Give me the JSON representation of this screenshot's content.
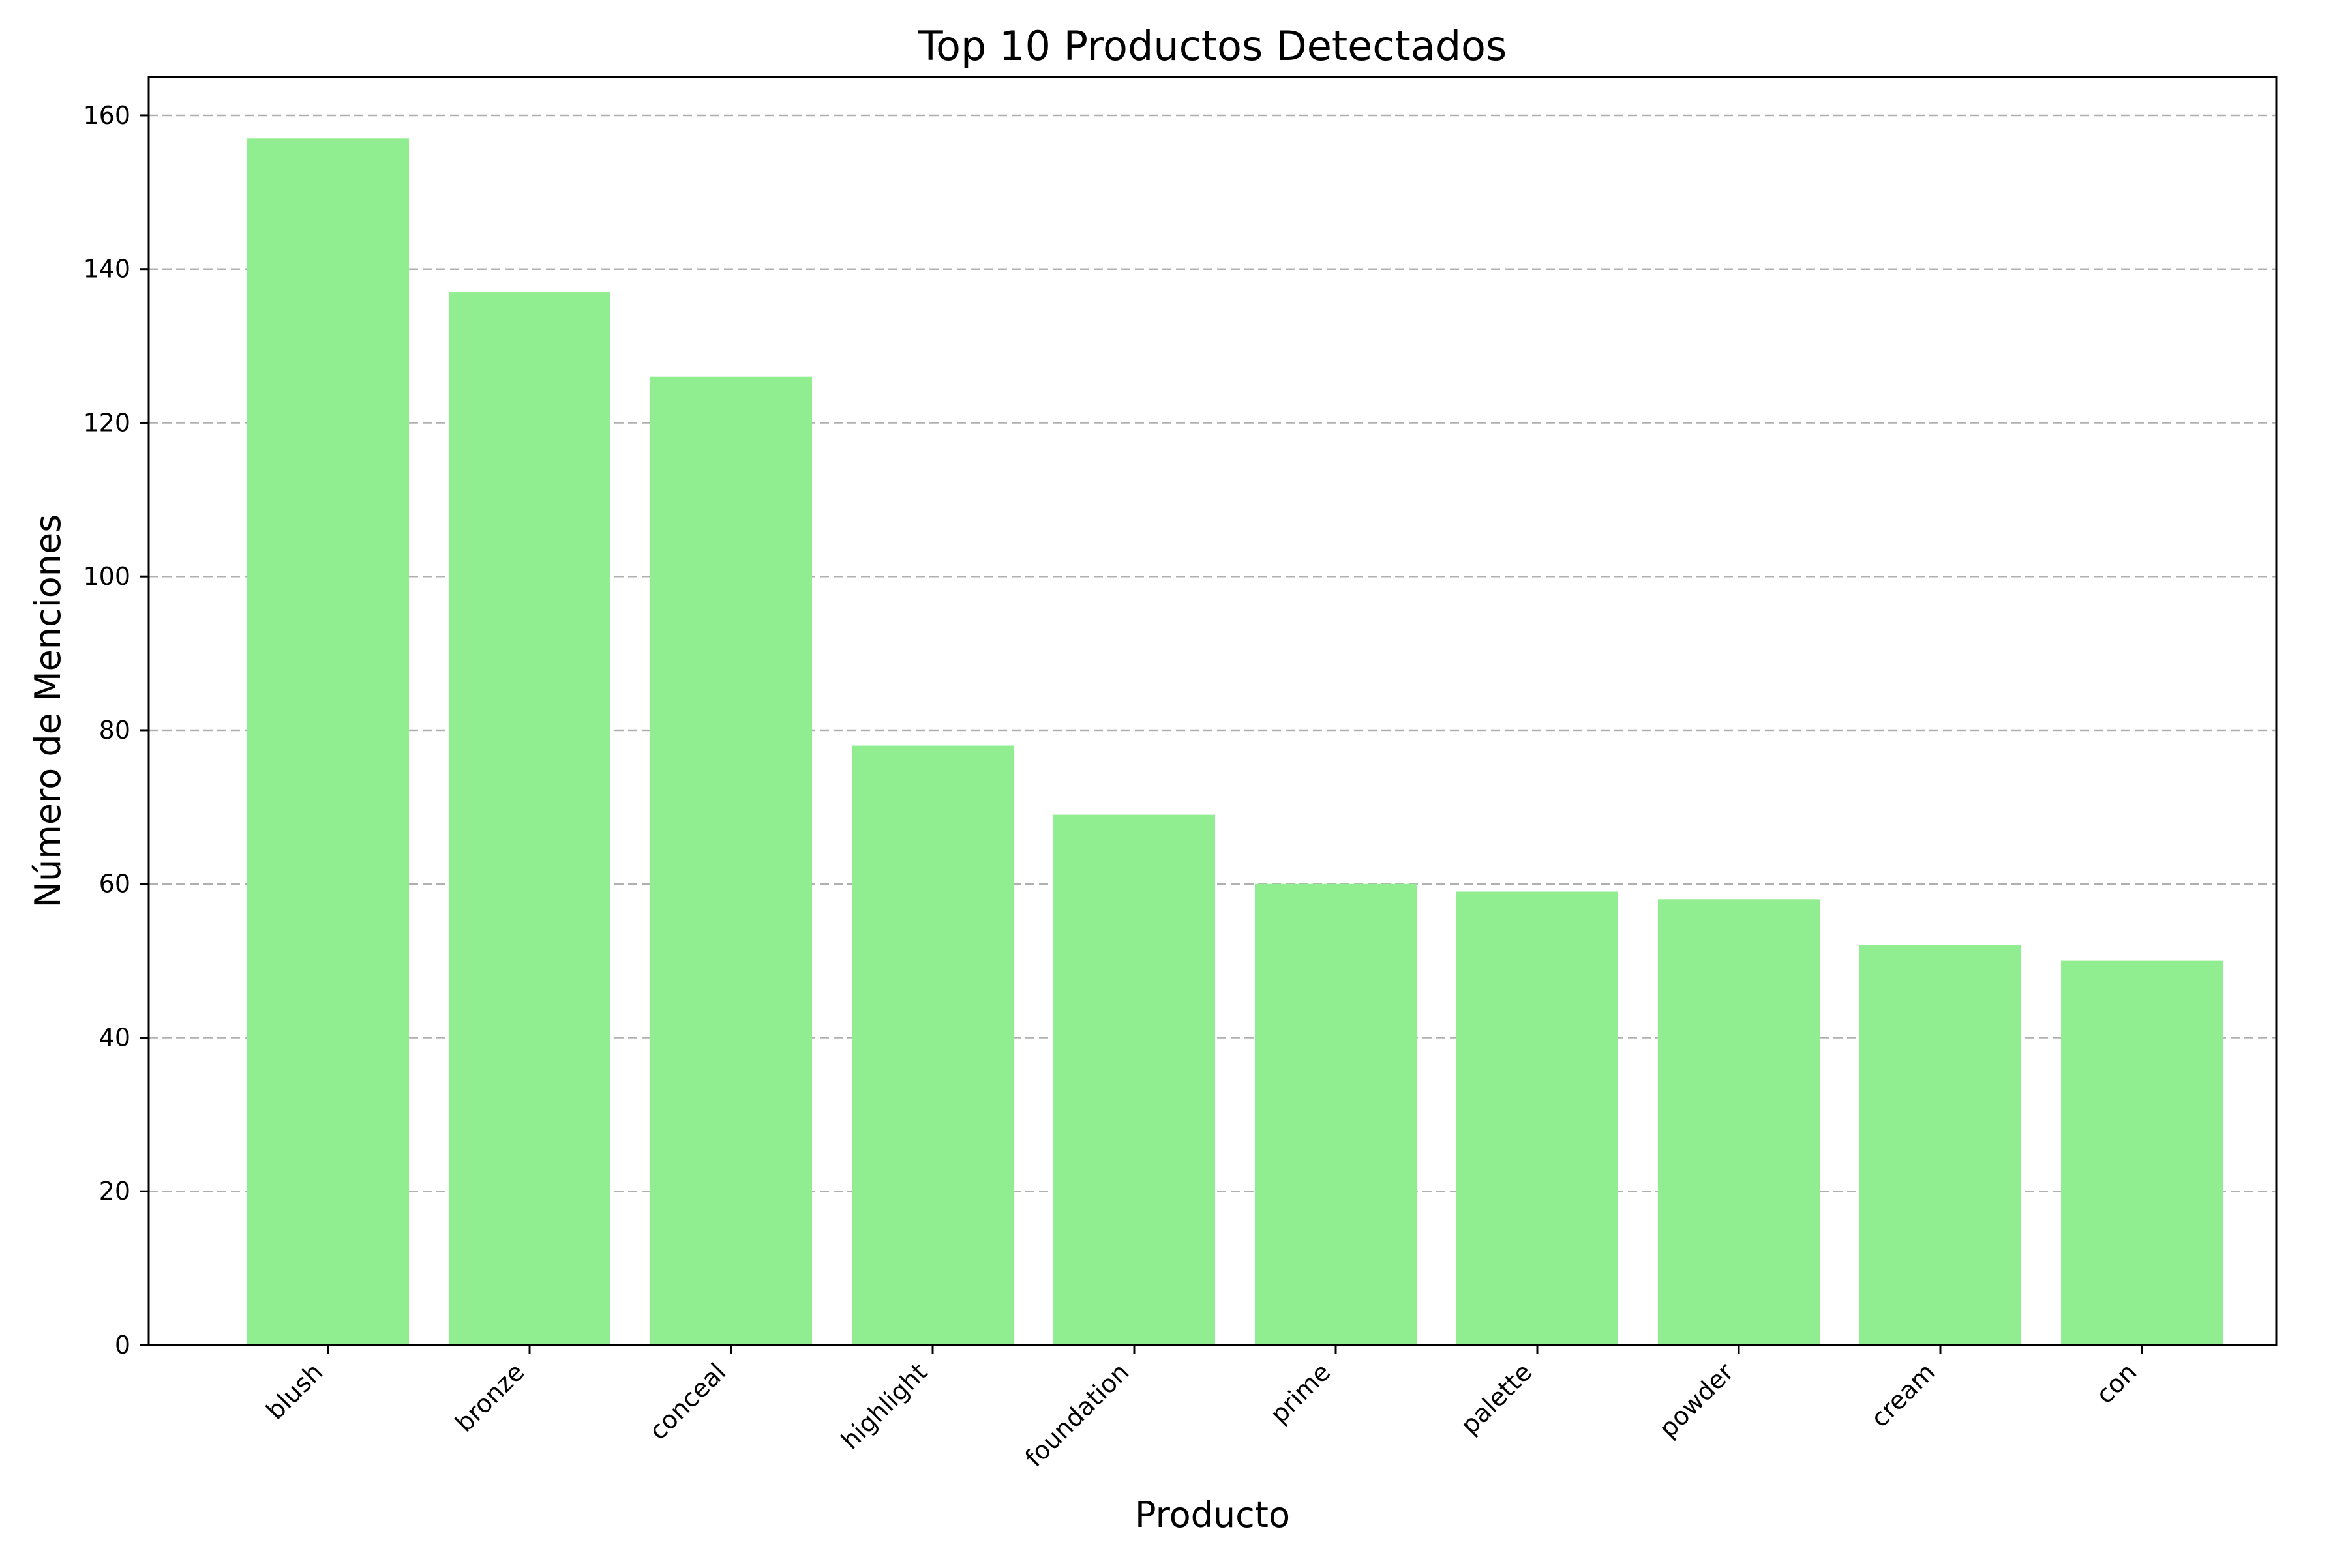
{
  "chart_data": {
    "type": "bar",
    "title": "Top 10 Productos Detectados",
    "xlabel": "Producto",
    "ylabel": "Número de Menciones",
    "categories": [
      "blush",
      "bronze",
      "conceal",
      "highlight",
      "foundation",
      "prime",
      "palette",
      "powder",
      "cream",
      "con"
    ],
    "values": [
      157,
      137,
      126,
      78,
      69,
      60,
      59,
      58,
      52,
      50
    ],
    "ylim": [
      0,
      165
    ],
    "yticks": [
      0,
      20,
      40,
      60,
      80,
      100,
      120,
      140,
      160
    ],
    "grid": "y-dashed",
    "legend": "none",
    "bar_color": "#90ee90",
    "grid_color": "#b0b0b0",
    "axis_color": "#000000"
  }
}
